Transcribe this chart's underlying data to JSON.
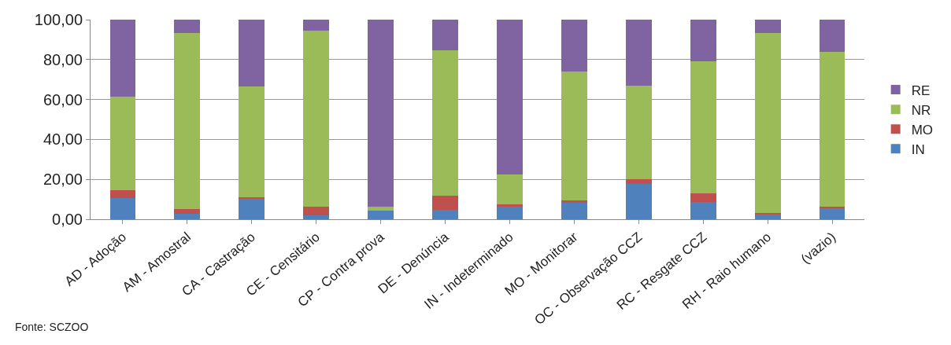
{
  "chart_data": {
    "type": "bar",
    "stacked": true,
    "categories": [
      "AD - Adoção",
      "AM - Amostral",
      "CA - Castração",
      "CE - Censitário",
      "CP - Contra prova",
      "DE - Denúncia",
      "IN - Indeterminado",
      "MO - Monitorar",
      "OC - Observação CCZ",
      "RC - Resgate CCZ",
      "RH - Raio humano",
      "(vazio)"
    ],
    "series": [
      {
        "name": "IN",
        "color": "#4f81bd",
        "values": [
          10.6,
          2.7,
          10.3,
          1.9,
          4.3,
          4.9,
          6.3,
          8.2,
          17.6,
          8.7,
          2.7,
          5.5
        ]
      },
      {
        "name": "MO",
        "color": "#c0504d",
        "values": [
          3.8,
          2.4,
          0.6,
          4.4,
          0,
          7.1,
          1.3,
          1.1,
          2.3,
          4.4,
          0.5,
          0.8
        ]
      },
      {
        "name": "NR",
        "color": "#9bbb59",
        "values": [
          47.2,
          88.3,
          55.7,
          88.2,
          2.0,
          72.5,
          14.9,
          64.8,
          47.2,
          65.9,
          90.2,
          77.7
        ]
      },
      {
        "name": "RE",
        "color": "#8064a2",
        "values": [
          38.4,
          6.6,
          33.4,
          5.5,
          93.7,
          15.5,
          77.5,
          25.9,
          32.9,
          21.0,
          6.6,
          16.0
        ]
      }
    ],
    "ylim": [
      0,
      100
    ],
    "yticks": [
      {
        "value": 0,
        "label": "0,00"
      },
      {
        "value": 20,
        "label": "20,00"
      },
      {
        "value": 40,
        "label": "40,00"
      },
      {
        "value": 60,
        "label": "60,00"
      },
      {
        "value": 80,
        "label": "80,00"
      },
      {
        "value": 100,
        "label": "100,00"
      }
    ],
    "grid": "y",
    "legend": "right",
    "annotations": [
      "Fonte: SCZOO"
    ]
  }
}
